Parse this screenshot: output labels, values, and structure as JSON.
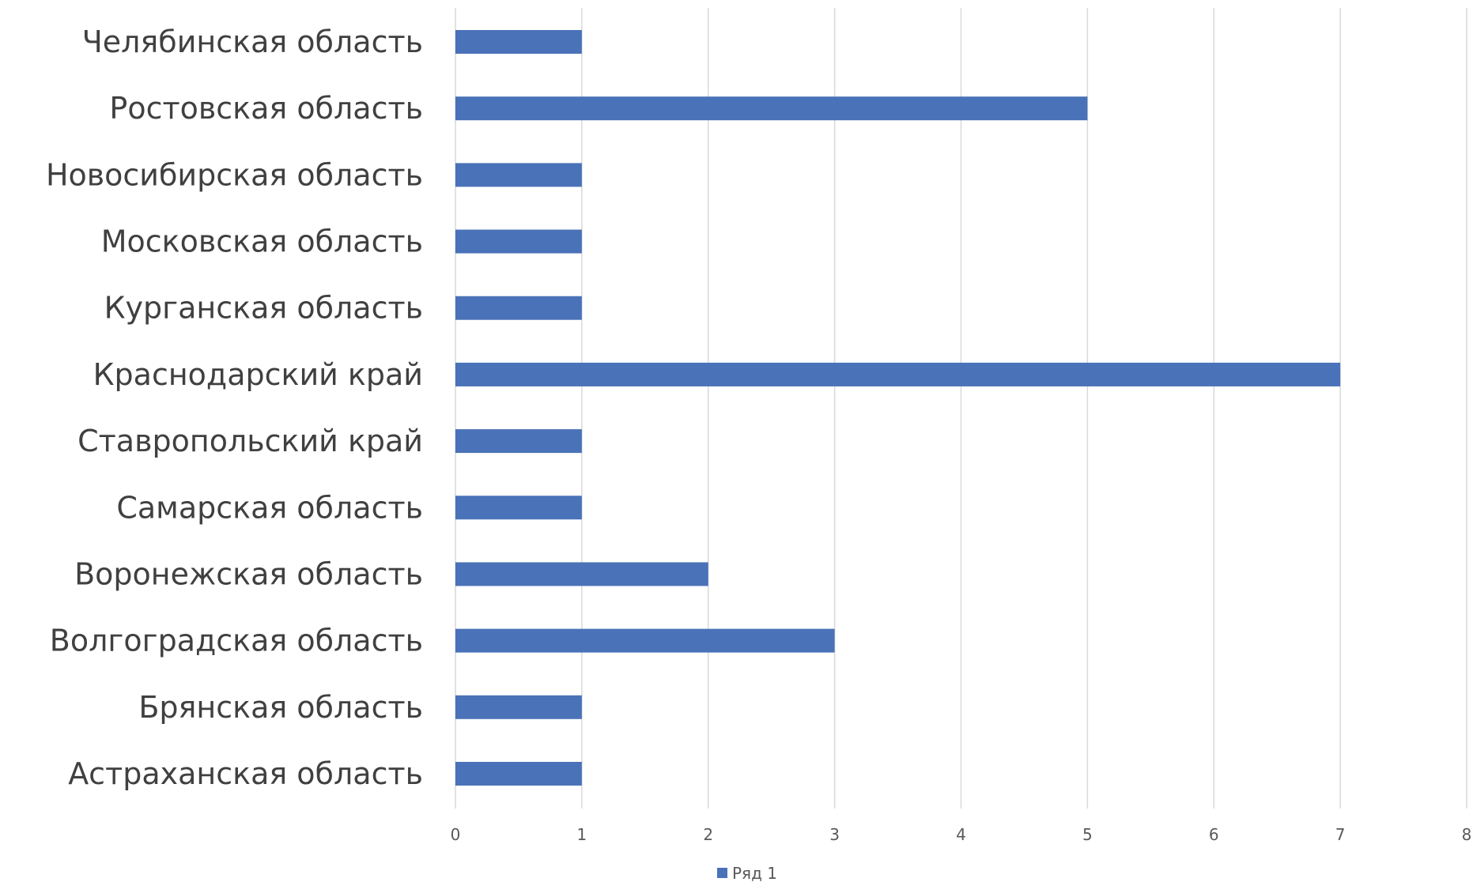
{
  "chart_data": {
    "type": "bar",
    "orientation": "horizontal",
    "categories": [
      "Челябинская область",
      "Ростовская область",
      "Новосибирская область",
      "Московская область",
      "Курганская область",
      "Краснодарский край",
      "Ставропольский край",
      "Самарская область",
      "Воронежская область",
      "Волгоградская область",
      "Брянская область",
      "Астраханская область"
    ],
    "series": [
      {
        "name": "Ряд 1",
        "color": "#4a72b8",
        "values": [
          1,
          5,
          1,
          1,
          1,
          7,
          1,
          1,
          2,
          3,
          1,
          1
        ]
      }
    ],
    "xlim": [
      0,
      8
    ],
    "xticks": [
      "0",
      "1",
      "2",
      "3",
      "4",
      "5",
      "6",
      "7",
      "8"
    ],
    "grid": "vertical",
    "legend": "bottom",
    "gridColor": "#d9d9d9"
  }
}
